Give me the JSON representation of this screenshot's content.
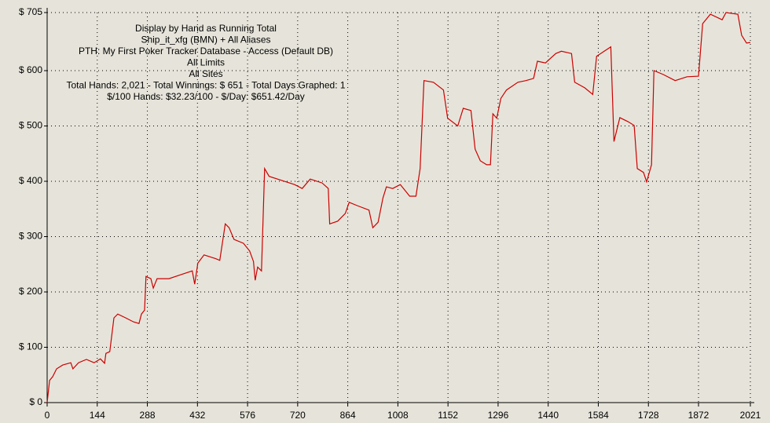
{
  "chart_data": {
    "type": "line",
    "annotations": [
      "Display by Hand as Running Total",
      "Ship_it_xfg (BMN) + All Aliases",
      "PTH: My First Poker Tracker Database - Access (Default DB)",
      "All Limits",
      "All Sites",
      "Total Hands: 2,021 - Total Winnings: $ 651 - Total Days Graphed: 1",
      "$/100 Hands: $32.23/100 - $/Day: $651.42/Day"
    ],
    "grid": true,
    "xlim": [
      0,
      2021
    ],
    "xticks": [
      0,
      144,
      288,
      432,
      576,
      720,
      864,
      1008,
      1152,
      1296,
      1440,
      1584,
      1728,
      1872,
      2021
    ],
    "ylim": [
      0,
      705
    ],
    "yticks": [
      {
        "value": 0,
        "label": "$ 0"
      },
      {
        "value": 100,
        "label": "$ 100"
      },
      {
        "value": 200,
        "label": "$ 200"
      },
      {
        "value": 300,
        "label": "$ 300"
      },
      {
        "value": 400,
        "label": "$ 400"
      },
      {
        "value": 500,
        "label": "$ 500"
      },
      {
        "value": 600,
        "label": "$ 600"
      },
      {
        "value": 705,
        "label": "$ 705"
      }
    ],
    "x": [
      0,
      7,
      16,
      27,
      45,
      68,
      74,
      90,
      113,
      135,
      153,
      165,
      169,
      180,
      192,
      203,
      226,
      248,
      264,
      271,
      280,
      284,
      298,
      305,
      316,
      350,
      383,
      417,
      424,
      433,
      451,
      485,
      496,
      512,
      523,
      537,
      564,
      582,
      593,
      598,
      605,
      616,
      625,
      638,
      677,
      711,
      733,
      756,
      790,
      808,
      812,
      835,
      857,
      868,
      891,
      925,
      936,
      951,
      965,
      975,
      993,
      1015,
      1033,
      1042,
      1060,
      1072,
      1083,
      1110,
      1139,
      1151,
      1180,
      1196,
      1218,
      1230,
      1245,
      1263,
      1274,
      1281,
      1292,
      1304,
      1320,
      1353,
      1376,
      1398,
      1409,
      1432,
      1462,
      1478,
      1507,
      1516,
      1545,
      1568,
      1579,
      1601,
      1620,
      1629,
      1646,
      1669,
      1687,
      1696,
      1714,
      1723,
      1737,
      1744,
      1771,
      1805,
      1839,
      1872,
      1884,
      1906,
      1940,
      1951,
      1985,
      1996,
      2010,
      2021
    ],
    "series": [
      {
        "color": "#cc0000",
        "values": [
          0,
          40,
          47,
          61,
          68,
          72,
          61,
          72,
          78,
          72,
          79,
          71,
          89,
          92,
          153,
          160,
          153,
          146,
          143,
          160,
          167,
          228,
          224,
          207,
          224,
          224,
          231,
          238,
          214,
          252,
          267,
          260,
          257,
          323,
          316,
          295,
          288,
          274,
          255,
          221,
          245,
          238,
          423,
          409,
          401,
          394,
          387,
          404,
          397,
          387,
          323,
          328,
          342,
          362,
          356,
          348,
          316,
          326,
          370,
          390,
          387,
          394,
          380,
          373,
          373,
          423,
          582,
          579,
          565,
          514,
          500,
          532,
          528,
          458,
          437,
          430,
          430,
          522,
          514,
          550,
          565,
          579,
          582,
          586,
          617,
          614,
          631,
          635,
          631,
          579,
          569,
          557,
          626,
          635,
          643,
          472,
          515,
          508,
          501,
          423,
          416,
          399,
          430,
          600,
          593,
          582,
          589,
          590,
          685,
          702,
          692,
          705,
          702,
          664,
          650,
          651
        ]
      }
    ]
  }
}
